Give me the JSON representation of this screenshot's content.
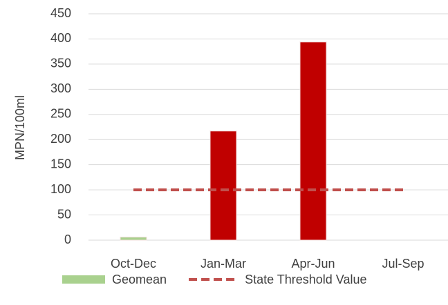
{
  "chart_data": {
    "type": "bar",
    "y_label": "MPN/100ml",
    "categories": [
      "Oct-Dec",
      "Jan-Mar",
      "Apr-Jun",
      "Jul-Sep"
    ],
    "series": [
      {
        "name": "Geomean",
        "type": "bar",
        "color": "#a9d18e",
        "point_colors": [
          "#a9d18e",
          "#c00000",
          "#c00000",
          "#c00000"
        ],
        "values": [
          6,
          217,
          394,
          null
        ]
      },
      {
        "name": "State Threshold Value",
        "type": "line",
        "color": "#c0504d",
        "dashed": true,
        "values": [
          100,
          100,
          100,
          100
        ]
      }
    ],
    "ylim": [
      0,
      450
    ],
    "yticks": [
      0,
      50,
      100,
      150,
      200,
      250,
      300,
      350,
      400,
      450
    ],
    "grid": true,
    "legend": "bottom"
  }
}
